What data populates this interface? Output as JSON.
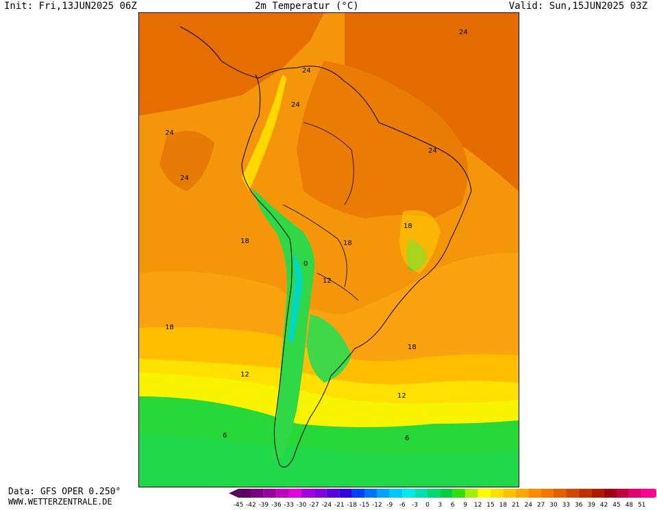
{
  "header": {
    "init": "Init: Fri,13JUN2025 06Z",
    "title": "2m Temperatur (°C)",
    "valid": "Valid: Sun,15JUN2025 03Z"
  },
  "footer": {
    "data_source": "Data: GFS OPER 0.250°",
    "site": "WWW.WETTERZENTRALE.DE"
  },
  "map": {
    "region": "South America",
    "contour_labels": [
      {
        "text": "24"
      },
      {
        "text": "24"
      },
      {
        "text": "24"
      },
      {
        "text": "24"
      },
      {
        "text": "24"
      },
      {
        "text": "24"
      },
      {
        "text": "18"
      },
      {
        "text": "18"
      },
      {
        "text": "18"
      },
      {
        "text": "18"
      },
      {
        "text": "18"
      },
      {
        "text": "12"
      },
      {
        "text": "12"
      },
      {
        "text": "12"
      },
      {
        "text": "6"
      },
      {
        "text": "6"
      },
      {
        "text": "0"
      }
    ]
  },
  "colorbar": {
    "ticks": [
      "-45",
      "-42",
      "-39",
      "-36",
      "-33",
      "-30",
      "-27",
      "-24",
      "-21",
      "-18",
      "-15",
      "-12",
      "-9",
      "-6",
      "-3",
      "0",
      "3",
      "6",
      "9",
      "12",
      "15",
      "18",
      "21",
      "24",
      "27",
      "30",
      "33",
      "36",
      "39",
      "42",
      "45",
      "48",
      "51"
    ],
    "colors": [
      "#5a0060",
      "#78007e",
      "#9a009a",
      "#c000c0",
      "#e000e0",
      "#a000e0",
      "#8000e0",
      "#5a00e0",
      "#3000e0",
      "#0040ff",
      "#0070ff",
      "#00a0ff",
      "#00c8ff",
      "#00e8e8",
      "#00e0a8",
      "#00d870",
      "#00d040",
      "#30e000",
      "#a0f000",
      "#ffff00",
      "#ffe000",
      "#ffc000",
      "#ffa800",
      "#ff8c00",
      "#f07800",
      "#e06000",
      "#d04800",
      "#c03000",
      "#b01800",
      "#a00010",
      "#c00040",
      "#e00070",
      "#ff0090"
    ]
  }
}
